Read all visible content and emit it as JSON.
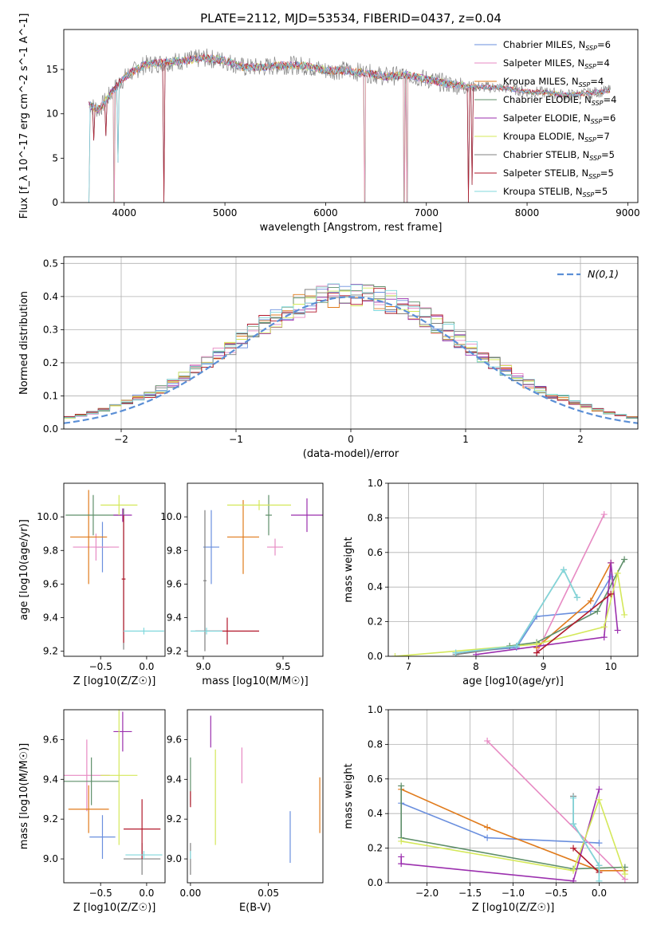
{
  "figure": {
    "title": "PLATE=2112, MJD=53534, FIBERID=0437, z=0.04"
  },
  "colors": {
    "Chabrier MILES": "#6a8fde",
    "Salpeter MILES": "#e78ac3",
    "Kroupa MILES": "#e07b1c",
    "Chabrier ELODIE": "#5f8f6a",
    "Salpeter ELODIE": "#9b2fae",
    "Kroupa ELODIE": "#d4e85a",
    "Chabrier STELIB": "#808080",
    "Salpeter STELIB": "#b2182b",
    "Kroupa STELIB": "#80d8dc",
    "normal": "#5b8fd6"
  },
  "chart_data": [
    {
      "id": "spectrum",
      "type": "line",
      "xlabel": "wavelength [Angstrom, rest frame]",
      "ylabel": "Flux [f_λ 10^-17 erg cm^-2 s^-1 A^-1]",
      "xlim": [
        3400,
        9100
      ],
      "ylim": [
        0,
        19.5
      ],
      "xticks": [
        4000,
        5000,
        6000,
        7000,
        8000,
        9000
      ],
      "yticks": [
        0,
        5,
        10,
        15
      ],
      "legend_position": "upper right",
      "legend": [
        {
          "model": "Chabrier MILES",
          "n_ssp": "6"
        },
        {
          "model": "Salpeter MILES",
          "n_ssp": "4"
        },
        {
          "model": "Kroupa MILES",
          "n_ssp": "4"
        },
        {
          "model": "Chabrier ELODIE",
          "n_ssp": "4"
        },
        {
          "model": "Salpeter ELODIE",
          "n_ssp": "6"
        },
        {
          "model": "Kroupa ELODIE",
          "n_ssp": "7"
        },
        {
          "model": "Chabrier STELIB",
          "n_ssp": "5"
        },
        {
          "model": "Salpeter STELIB",
          "n_ssp": "5"
        },
        {
          "model": "Kroupa STELIB",
          "n_ssp": "5"
        }
      ],
      "continuum": [
        [
          3650,
          11
        ],
        [
          3750,
          10.5
        ],
        [
          3850,
          12
        ],
        [
          3950,
          13.5
        ],
        [
          4050,
          14.5
        ],
        [
          4200,
          15.5
        ],
        [
          4400,
          15.8
        ],
        [
          4600,
          16
        ],
        [
          4800,
          16.3
        ],
        [
          5000,
          16
        ],
        [
          5200,
          15.2
        ],
        [
          5400,
          15.3
        ],
        [
          5600,
          15.5
        ],
        [
          5800,
          15.4
        ],
        [
          6000,
          14.9
        ],
        [
          6200,
          14.9
        ],
        [
          6400,
          14.6
        ],
        [
          6600,
          14.2
        ],
        [
          6800,
          14.4
        ],
        [
          7000,
          13.9
        ],
        [
          7200,
          13.4
        ],
        [
          7400,
          13.1
        ],
        [
          7600,
          13.0
        ],
        [
          7800,
          12.9
        ],
        [
          8000,
          12.5
        ],
        [
          8200,
          12.4
        ],
        [
          8400,
          12.1
        ],
        [
          8600,
          12.3
        ],
        [
          8800,
          12.6
        ]
      ],
      "spikes": [
        [
          3650,
          0
        ],
        [
          3700,
          7
        ],
        [
          3820,
          7.5
        ],
        [
          3900,
          0
        ],
        [
          3935,
          4.5
        ],
        [
          4390,
          0
        ],
        [
          6390,
          0
        ],
        [
          6780,
          0
        ],
        [
          6810,
          0
        ],
        [
          7420,
          0
        ],
        [
          7450,
          2
        ]
      ]
    },
    {
      "id": "residuals",
      "type": "line",
      "xlabel": "(data-model)/error",
      "ylabel": "Normed distribution",
      "xlim": [
        -2.5,
        2.5
      ],
      "ylim": [
        0,
        0.52
      ],
      "xticks": [
        -2,
        -1,
        0,
        1,
        2
      ],
      "yticks": [
        0.0,
        0.1,
        0.2,
        0.3,
        0.4,
        0.5
      ],
      "grid": true,
      "legend_position": "upper right",
      "series": [
        {
          "name": "N(0,1)",
          "style": "dashed",
          "mu": 0,
          "sigma": 1
        }
      ],
      "histograms": {
        "bin_width": 0.1,
        "x_start": -2.5,
        "profile_note": "normal-like histograms of 9 fits"
      }
    },
    {
      "id": "age_vs_Z",
      "type": "scatter",
      "xlabel": "Z [log10(Z/Z☉)]",
      "ylabel": "age  [log10(age/yr)]",
      "xlim": [
        -0.9,
        0.2
      ],
      "ylim": [
        9.17,
        10.2
      ],
      "xticks": [
        -0.5,
        0.0
      ],
      "yticks": [
        9.2,
        9.4,
        9.6,
        9.8,
        10.0
      ],
      "points": [
        {
          "model": "Chabrier MILES",
          "x": -0.48,
          "xerr": 0.07,
          "y": 9.82,
          "yerr": 0.15
        },
        {
          "model": "Salpeter MILES",
          "x": -0.55,
          "xerr": 0.25,
          "y": 9.82,
          "yerr": 0.08
        },
        {
          "model": "Kroupa MILES",
          "x": -0.63,
          "xerr": 0.2,
          "y": 9.88,
          "yerr": 0.28
        },
        {
          "model": "Chabrier ELODIE",
          "x": -0.58,
          "xerr": 0.3,
          "y": 10.01,
          "yerr": 0.12
        },
        {
          "model": "Salpeter ELODIE",
          "x": -0.26,
          "xerr": 0.1,
          "y": 10.01,
          "yerr": 0.04
        },
        {
          "model": "Kroupa ELODIE",
          "x": -0.3,
          "xerr": 0.2,
          "y": 10.07,
          "yerr": 0.06
        },
        {
          "model": "Chabrier STELIB",
          "x": -0.25,
          "xerr": 0.02,
          "y": 9.63,
          "yerr": 0.42
        },
        {
          "model": "Salpeter STELIB",
          "x": -0.25,
          "xerr": 0.02,
          "y": 9.63,
          "yerr": 0.38
        },
        {
          "model": "Kroupa STELIB",
          "x": -0.03,
          "xerr": 0.22,
          "y": 9.32,
          "yerr": 0.02
        }
      ]
    },
    {
      "id": "age_vs_mass",
      "type": "scatter",
      "xlabel": "mass [log10(M/M☉)]",
      "ylabel": "",
      "xlim": [
        8.9,
        9.75
      ],
      "ylim": [
        9.17,
        10.2
      ],
      "xticks": [
        9.0,
        9.5
      ],
      "yticks": [
        9.2,
        9.4,
        9.6,
        9.8,
        10.0
      ],
      "points": [
        {
          "model": "Chabrier MILES",
          "x": 9.05,
          "xerr": 0.05,
          "y": 9.82,
          "yerr": 0.22
        },
        {
          "model": "Salpeter MILES",
          "x": 9.45,
          "xerr": 0.05,
          "y": 9.82,
          "yerr": 0.05
        },
        {
          "model": "Kroupa MILES",
          "x": 9.25,
          "xerr": 0.1,
          "y": 9.88,
          "yerr": 0.22
        },
        {
          "model": "Chabrier ELODIE",
          "x": 9.41,
          "xerr": 0.02,
          "y": 10.01,
          "yerr": 0.12
        },
        {
          "model": "Salpeter ELODIE",
          "x": 9.65,
          "xerr": 0.1,
          "y": 10.01,
          "yerr": 0.1
        },
        {
          "model": "Kroupa ELODIE",
          "x": 9.35,
          "xerr": 0.2,
          "y": 10.07,
          "yerr": 0.03
        },
        {
          "model": "Chabrier STELIB",
          "x": 9.01,
          "xerr": 0.01,
          "y": 9.62,
          "yerr": 0.42
        },
        {
          "model": "Salpeter STELIB",
          "x": 9.15,
          "xerr": 0.2,
          "y": 9.32,
          "yerr": 0.08
        },
        {
          "model": "Kroupa STELIB",
          "x": 9.02,
          "xerr": 0.1,
          "y": 9.32,
          "yerr": 0.02
        }
      ]
    },
    {
      "id": "weight_vs_age",
      "type": "line",
      "xlabel": "age  [log10(age/yr)]",
      "ylabel": "mass weight",
      "xlim": [
        6.7,
        10.4
      ],
      "ylim": [
        0,
        1.0
      ],
      "xticks": [
        7,
        8,
        9,
        10
      ],
      "yticks": [
        0.0,
        0.2,
        0.4,
        0.6,
        0.8,
        1.0
      ],
      "grid": true,
      "series": [
        {
          "model": "Chabrier MILES",
          "points": [
            [
              7.7,
              0.02
            ],
            [
              8.6,
              0.05
            ],
            [
              8.9,
              0.23
            ],
            [
              9.7,
              0.26
            ],
            [
              10.0,
              0.46
            ]
          ]
        },
        {
          "model": "Salpeter MILES",
          "points": [
            [
              8.9,
              0.02
            ],
            [
              9.9,
              0.82
            ]
          ]
        },
        {
          "model": "Kroupa MILES",
          "points": [
            [
              8.9,
              0.05
            ],
            [
              9.7,
              0.32
            ],
            [
              10.0,
              0.54
            ]
          ]
        },
        {
          "model": "Chabrier ELODIE",
          "points": [
            [
              8.5,
              0.06
            ],
            [
              8.9,
              0.08
            ],
            [
              9.8,
              0.26
            ],
            [
              10.2,
              0.56
            ]
          ]
        },
        {
          "model": "Salpeter ELODIE",
          "points": [
            [
              8.0,
              0.01
            ],
            [
              9.9,
              0.11
            ],
            [
              10.0,
              0.54
            ],
            [
              10.1,
              0.15
            ]
          ]
        },
        {
          "model": "Kroupa ELODIE",
          "points": [
            [
              6.8,
              0.0
            ],
            [
              8.9,
              0.07
            ],
            [
              9.9,
              0.17
            ],
            [
              10.1,
              0.48
            ],
            [
              10.2,
              0.24
            ]
          ]
        },
        {
          "model": "Chabrier STELIB",
          "points": [
            [
              7.7,
              0.01
            ],
            [
              8.6,
              0.06
            ],
            [
              9.3,
              0.5
            ],
            [
              9.5,
              0.34
            ]
          ]
        },
        {
          "model": "Salpeter STELIB",
          "points": [
            [
              8.9,
              0.02
            ],
            [
              10.0,
              0.36
            ]
          ]
        },
        {
          "model": "Kroupa STELIB",
          "points": [
            [
              7.7,
              0.02
            ],
            [
              8.6,
              0.06
            ],
            [
              9.3,
              0.5
            ],
            [
              9.5,
              0.34
            ]
          ]
        }
      ]
    },
    {
      "id": "mass_vs_Z",
      "type": "scatter",
      "xlabel": "Z [log10(Z/Z☉)]",
      "ylabel": "mass [log10(M/M☉)]",
      "xlim": [
        -0.9,
        0.2
      ],
      "ylim": [
        8.88,
        9.75
      ],
      "xticks": [
        -0.5,
        0.0
      ],
      "yticks": [
        9.0,
        9.2,
        9.4,
        9.6
      ],
      "points": [
        {
          "model": "Chabrier MILES",
          "x": -0.48,
          "xerr": 0.14,
          "y": 9.11,
          "yerr": 0.11
        },
        {
          "model": "Salpeter MILES",
          "x": -0.65,
          "xerr": 0.25,
          "y": 9.42,
          "yerr": 0.18
        },
        {
          "model": "Kroupa MILES",
          "x": -0.63,
          "xerr": 0.22,
          "y": 9.25,
          "yerr": 0.12
        },
        {
          "model": "Chabrier ELODIE",
          "x": -0.6,
          "xerr": 0.3,
          "y": 9.39,
          "yerr": 0.12
        },
        {
          "model": "Salpeter ELODIE",
          "x": -0.26,
          "xerr": 0.1,
          "y": 9.64,
          "yerr": 0.1
        },
        {
          "model": "Kroupa ELODIE",
          "x": -0.3,
          "xerr": 0.2,
          "y": 9.42,
          "yerr": 0.35
        },
        {
          "model": "Chabrier STELIB",
          "x": -0.05,
          "xerr": 0.2,
          "y": 9.0,
          "yerr": 0.08
        },
        {
          "model": "Salpeter STELIB",
          "x": -0.05,
          "xerr": 0.2,
          "y": 9.15,
          "yerr": 0.15
        },
        {
          "model": "Kroupa STELIB",
          "x": -0.03,
          "xerr": 0.2,
          "y": 9.02,
          "yerr": 0.02
        }
      ]
    },
    {
      "id": "mass_vs_ebv",
      "type": "scatter",
      "xlabel": "E(B-V)",
      "ylabel": "",
      "xlim": [
        -0.002,
        0.085
      ],
      "ylim": [
        8.88,
        9.75
      ],
      "xticks": [
        0.0,
        0.05
      ],
      "yticks": [
        9.0,
        9.2,
        9.4,
        9.6
      ],
      "points": [
        {
          "model": "Chabrier MILES",
          "x": 0.064,
          "y": 9.11,
          "yerr": 0.13
        },
        {
          "model": "Salpeter MILES",
          "x": 0.033,
          "y": 9.47,
          "yerr": 0.09
        },
        {
          "model": "Kroupa MILES",
          "x": 0.083,
          "y": 9.27,
          "yerr": 0.14
        },
        {
          "model": "Chabrier ELODIE",
          "x": 0.0,
          "y": 9.39,
          "yerr": 0.12
        },
        {
          "model": "Salpeter ELODIE",
          "x": 0.013,
          "y": 9.64,
          "yerr": 0.08
        },
        {
          "model": "Kroupa ELODIE",
          "x": 0.016,
          "y": 9.31,
          "yerr": 0.24
        },
        {
          "model": "Chabrier STELIB",
          "x": 0.0,
          "y": 9.0,
          "yerr": 0.08
        },
        {
          "model": "Salpeter STELIB",
          "x": 0.0,
          "y": 9.3,
          "yerr": 0.04
        },
        {
          "model": "Kroupa STELIB",
          "x": 0.0,
          "y": 9.02,
          "yerr": 0.02
        }
      ]
    },
    {
      "id": "weight_vs_Z",
      "type": "line",
      "xlabel": "Z [log10(Z/Z☉)]",
      "ylabel": "mass weight",
      "xlim": [
        -2.45,
        0.45
      ],
      "ylim": [
        0,
        1.0
      ],
      "xticks": [
        -2.0,
        -1.5,
        -1.0,
        -0.5,
        0.0
      ],
      "yticks": [
        0.0,
        0.2,
        0.4,
        0.6,
        0.8,
        1.0
      ],
      "grid": true,
      "series": [
        {
          "model": "Chabrier MILES",
          "points": [
            [
              -2.3,
              0.46
            ],
            [
              -1.3,
              0.26
            ],
            [
              0.0,
              0.23
            ]
          ]
        },
        {
          "model": "Salpeter MILES",
          "points": [
            [
              -1.3,
              0.82
            ],
            [
              0.3,
              0.02
            ]
          ]
        },
        {
          "model": "Kroupa MILES",
          "points": [
            [
              -2.3,
              0.54
            ],
            [
              -1.3,
              0.32
            ],
            [
              0.0,
              0.07
            ],
            [
              0.3,
              0.07
            ]
          ]
        },
        {
          "model": "Chabrier ELODIE",
          "points": [
            [
              -2.3,
              0.56
            ],
            [
              -2.3,
              0.26
            ],
            [
              -0.3,
              0.08
            ],
            [
              0.3,
              0.09
            ]
          ]
        },
        {
          "model": "Salpeter ELODIE",
          "points": [
            [
              -2.3,
              0.15
            ],
            [
              -2.3,
              0.11
            ],
            [
              -0.3,
              0.01
            ],
            [
              0.0,
              0.54
            ]
          ]
        },
        {
          "model": "Kroupa ELODIE",
          "points": [
            [
              -2.3,
              0.24
            ],
            [
              -0.3,
              0.07
            ],
            [
              0.0,
              0.48
            ],
            [
              0.3,
              0.05
            ]
          ]
        },
        {
          "model": "Chabrier STELIB",
          "points": [
            [
              -0.3,
              0.5
            ],
            [
              -0.3,
              0.34
            ],
            [
              0.0,
              0.1
            ]
          ]
        },
        {
          "model": "Salpeter STELIB",
          "points": [
            [
              -0.3,
              0.2
            ],
            [
              0.0,
              0.06
            ]
          ]
        },
        {
          "model": "Kroupa STELIB",
          "points": [
            [
              -0.3,
              0.49
            ],
            [
              -0.3,
              0.34
            ],
            [
              0.0,
              0.1
            ],
            [
              0.0,
              0.01
            ]
          ]
        }
      ]
    }
  ]
}
